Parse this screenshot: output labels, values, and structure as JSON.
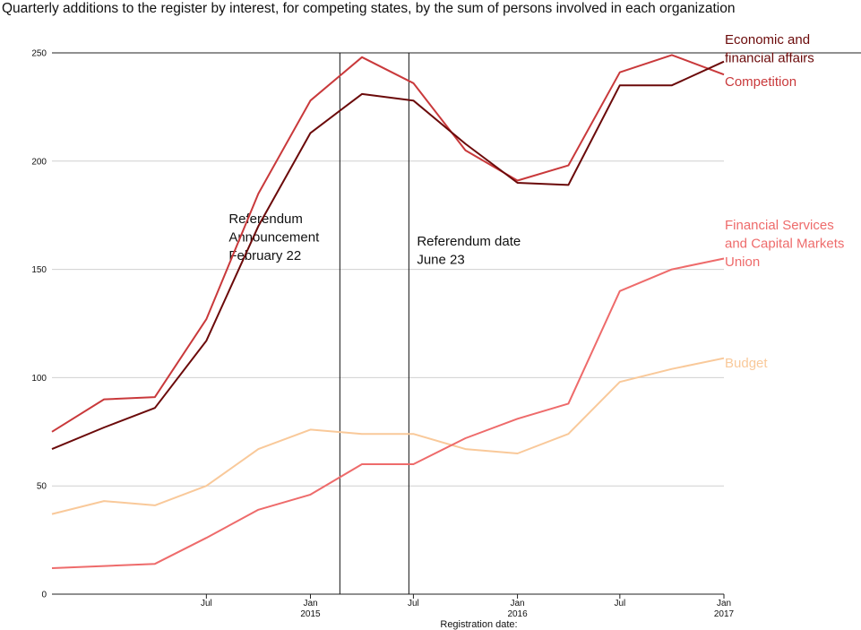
{
  "title": "Quarterly additions to the register by interest, for competing states, by the sum of persons involved in each organization",
  "chart_data": {
    "type": "line",
    "xlabel": "Registration date:",
    "ylabel": "",
    "ylim": [
      0,
      250
    ],
    "yticks": [
      0,
      50,
      100,
      150,
      200,
      250
    ],
    "grid": true,
    "x": [
      "2014-10-01",
      "2015-01-01",
      "2015-04-01",
      "2015-07-01",
      "2015-10-01",
      "2016-01-01",
      "2016-04-01",
      "2016-07-01",
      "2016-10-01",
      "2017-01-01",
      "2017-04-01",
      "2017-07-01",
      "2017-10-01",
      "2018-01-01"
    ],
    "xticks": [
      {
        "date": "2015-07-01",
        "label": "Jul",
        "sub": ""
      },
      {
        "date": "2016-01-01",
        "label": "Jan",
        "sub": "2015"
      },
      {
        "date": "2016-07-01",
        "label": "Jul",
        "sub": ""
      },
      {
        "date": "2017-01-01",
        "label": "Jan",
        "sub": "2016"
      },
      {
        "date": "2017-07-01",
        "label": "Jul",
        "sub": ""
      },
      {
        "date": "2018-01-01",
        "label": "Jan",
        "sub": "2017"
      }
    ],
    "series": [
      {
        "name": "Economic and financial affairs",
        "color": "#6b0a0a",
        "values": [
          67,
          77,
          86,
          117,
          170,
          213,
          231,
          228,
          208,
          190,
          189,
          235,
          235,
          246
        ]
      },
      {
        "name": "Competition",
        "color": "#c9393b",
        "values": [
          75,
          90,
          91,
          127,
          185,
          228,
          248,
          236,
          205,
          191,
          198,
          241,
          249,
          240
        ]
      },
      {
        "name": "Financial Services and Capital Markets Union",
        "color": "#ee6b6b",
        "values": [
          12,
          13,
          14,
          26,
          39,
          46,
          60,
          60,
          72,
          81,
          88,
          140,
          150,
          155
        ]
      },
      {
        "name": "Budget",
        "color": "#f9c99a",
        "values": [
          37,
          43,
          41,
          50,
          67,
          76,
          74,
          74,
          67,
          65,
          74,
          98,
          104,
          109
        ]
      }
    ],
    "annotations": [
      {
        "date": "2016-02-22",
        "text": [
          "Referendum",
          "Announcement",
          "February 22"
        ]
      },
      {
        "date": "2016-06-23",
        "text": [
          "Referendum date",
          "June 23"
        ]
      }
    ]
  },
  "legend_labels": [
    {
      "lines": [
        "Economic and",
        "financial affairs"
      ],
      "color": "#6b0a0a"
    },
    {
      "lines": [
        "Competition"
      ],
      "color": "#c9393b"
    },
    {
      "lines": [
        "Financial Services",
        "and Capital Markets",
        "Union"
      ],
      "color": "#ee6b6b"
    },
    {
      "lines": [
        "Budget"
      ],
      "color": "#f9c99a"
    }
  ]
}
